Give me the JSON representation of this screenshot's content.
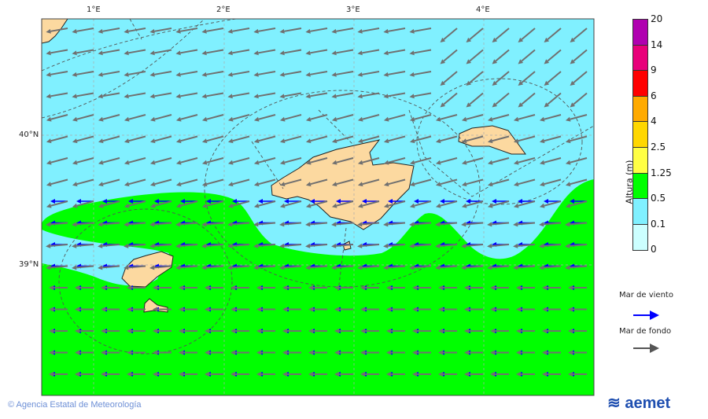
{
  "map": {
    "lon_labels": [
      "1°E",
      "2°E",
      "3°E",
      "4°E"
    ],
    "lat_labels": [
      "40°N",
      "39°N"
    ],
    "colors": {
      "sea_calm": "#80f0ff",
      "sea_green": "#00ff00",
      "land": "#fcd9a0",
      "wind_sea_arrow": "#0000ff",
      "swell_arrow": "#707070"
    }
  },
  "legend": {
    "title": "Altura (m)",
    "ticks": [
      "20",
      "14",
      "9",
      "6",
      "4",
      "2.5",
      "1.25",
      "0.5",
      "0.1",
      "0"
    ],
    "colors": [
      "#b000b0",
      "#e8007a",
      "#ff0000",
      "#ffaa00",
      "#ffd700",
      "#ffff44",
      "#00ff00",
      "#80f0ff",
      "#ccffff"
    ],
    "wind_sea_label": "Mar de viento",
    "swell_label": "Mar de fondo"
  },
  "footer": {
    "copyright": "© Agencia Estatal de Meteorología",
    "logo_text": "aemet"
  }
}
